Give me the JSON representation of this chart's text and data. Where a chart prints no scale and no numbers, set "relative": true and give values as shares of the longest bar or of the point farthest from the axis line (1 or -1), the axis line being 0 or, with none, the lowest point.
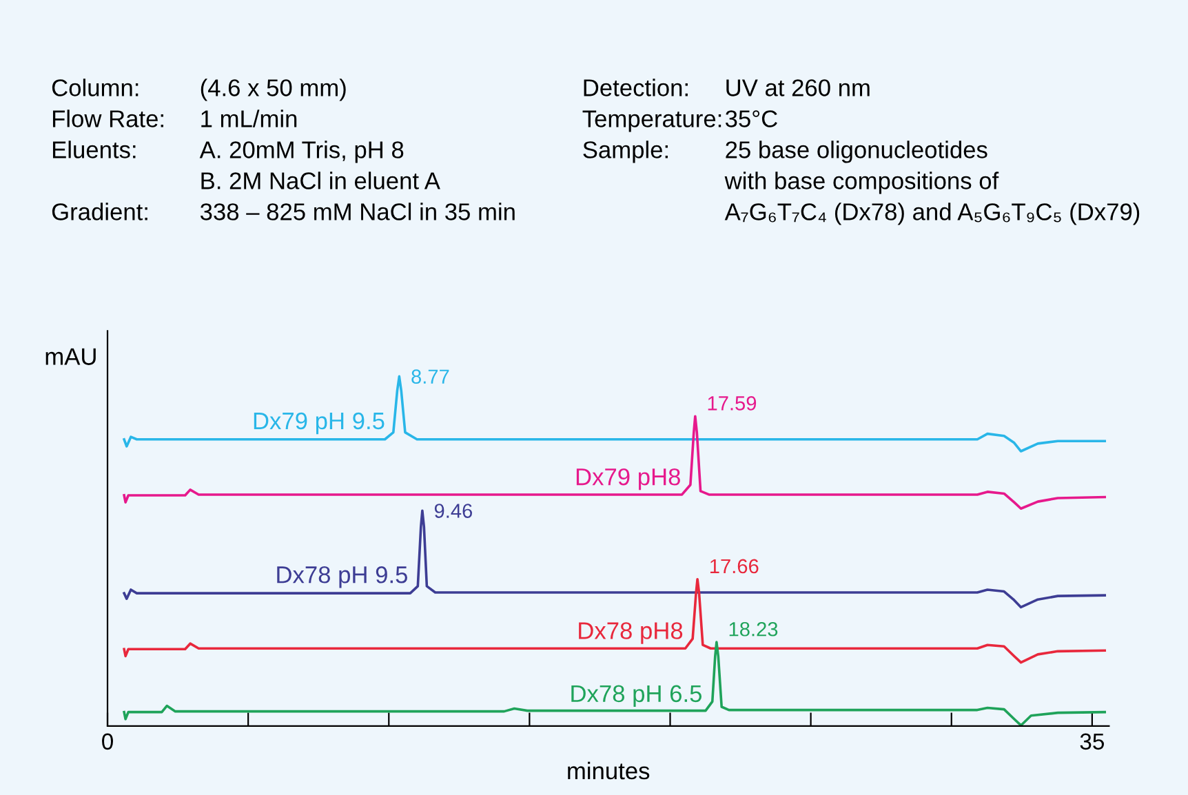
{
  "chart_data": {
    "type": "line",
    "relative": true,
    "xlabel": "minutes",
    "ylabel": "mAU",
    "xlim": [
      0,
      35.6
    ],
    "xticks": [
      0,
      {
        "value": 5,
        "label": null
      },
      {
        "value": 10,
        "label": null
      },
      {
        "value": 15,
        "label": null
      },
      {
        "value": 20,
        "label": null
      },
      {
        "value": 25,
        "label": null
      },
      {
        "value": 30,
        "label": null
      },
      35
    ],
    "grid": false,
    "legend": false,
    "marker": "none",
    "line_style": "solid",
    "series": [
      {
        "name": "Dx79 pH 9.5",
        "color": "#29b6e8",
        "x": [
          0.59,
          0.68,
          0.83,
          1.04,
          9.86,
          10.16,
          10.3,
          10.37,
          10.44,
          10.58,
          11.0,
          30.92,
          31.28,
          31.87,
          32.23,
          32.47,
          33.07,
          33.78,
          35.45
        ],
        "values": [
          0.82,
          0.8,
          0.827,
          0.82,
          0.82,
          0.84,
          0.96,
          1.0,
          0.96,
          0.84,
          0.82,
          0.82,
          0.836,
          0.83,
          0.81,
          0.786,
          0.808,
          0.815,
          0.815
        ]
      },
      {
        "name": "Dx79 pH8",
        "color": "#e6198c",
        "x": [
          0.59,
          0.64,
          0.74,
          2.76,
          2.94,
          3.24,
          20.42,
          20.72,
          20.84,
          20.89,
          20.95,
          21.08,
          21.38,
          30.92,
          31.28,
          31.87,
          32.23,
          32.47,
          33.07,
          33.78,
          35.45
        ],
        "values": [
          0.66,
          0.64,
          0.66,
          0.66,
          0.676,
          0.662,
          0.662,
          0.69,
          0.84,
          0.886,
          0.84,
          0.672,
          0.662,
          0.662,
          0.67,
          0.665,
          0.64,
          0.622,
          0.642,
          0.652,
          0.655
        ]
      },
      {
        "name": "Dx78 pH 9.5",
        "color": "#3d3d94",
        "x": [
          0.59,
          0.68,
          0.83,
          1.04,
          10.76,
          11.03,
          11.14,
          11.19,
          11.25,
          11.35,
          11.65,
          30.92,
          31.28,
          31.87,
          32.23,
          32.47,
          33.07,
          33.78,
          35.45
        ],
        "values": [
          0.38,
          0.364,
          0.39,
          0.38,
          0.38,
          0.4,
          0.57,
          0.616,
          0.57,
          0.4,
          0.382,
          0.382,
          0.39,
          0.385,
          0.36,
          0.34,
          0.362,
          0.372,
          0.374
        ]
      },
      {
        "name": "Dx78 pH8",
        "color": "#e8283c",
        "x": [
          0.59,
          0.64,
          0.74,
          2.76,
          2.94,
          3.24,
          20.54,
          20.8,
          20.92,
          20.97,
          21.03,
          21.16,
          21.44,
          30.92,
          31.28,
          31.87,
          32.23,
          32.47,
          33.07,
          33.78,
          35.45
        ],
        "values": [
          0.22,
          0.2,
          0.22,
          0.22,
          0.236,
          0.222,
          0.222,
          0.25,
          0.38,
          0.42,
          0.38,
          0.232,
          0.222,
          0.222,
          0.232,
          0.228,
          0.2,
          0.182,
          0.205,
          0.214,
          0.216
        ]
      },
      {
        "name": "Dx78 pH 6.5",
        "color": "#1fa35a",
        "x": [
          0.59,
          0.64,
          0.74,
          1.93,
          2.11,
          2.41,
          14.1,
          14.46,
          14.93,
          21.26,
          21.5,
          21.6,
          21.65,
          21.71,
          21.83,
          22.09,
          30.92,
          31.28,
          31.87,
          32.23,
          32.47,
          32.83,
          33.78,
          35.45
        ],
        "values": [
          0.04,
          0.02,
          0.04,
          0.04,
          0.058,
          0.042,
          0.042,
          0.05,
          0.044,
          0.044,
          0.07,
          0.2,
          0.24,
          0.2,
          0.055,
          0.046,
          0.046,
          0.052,
          0.048,
          0.02,
          0.002,
          0.03,
          0.038,
          0.04
        ]
      }
    ],
    "annotations": [
      "8.77",
      "17.59",
      "9.46",
      "17.66",
      "18.23",
      "Column:",
      "(4.6 x 50 mm)",
      "Detection:",
      "UV at 260 nm",
      "Flow Rate:",
      "1 mL/min",
      "Temperature:",
      "35°C",
      "Eluents:",
      "A. 20mM Tris, pH 8",
      "Sample:",
      "25 base oligonucleotides",
      "B. 2M NaCl in eluent A",
      "with base compositions of",
      "Gradient:",
      "338 – 825 mM NaCl in 35 min",
      "A₇G₆T₇C₄ (Dx78) and A₅G₆T₉C₅ (Dx79)"
    ]
  }
}
